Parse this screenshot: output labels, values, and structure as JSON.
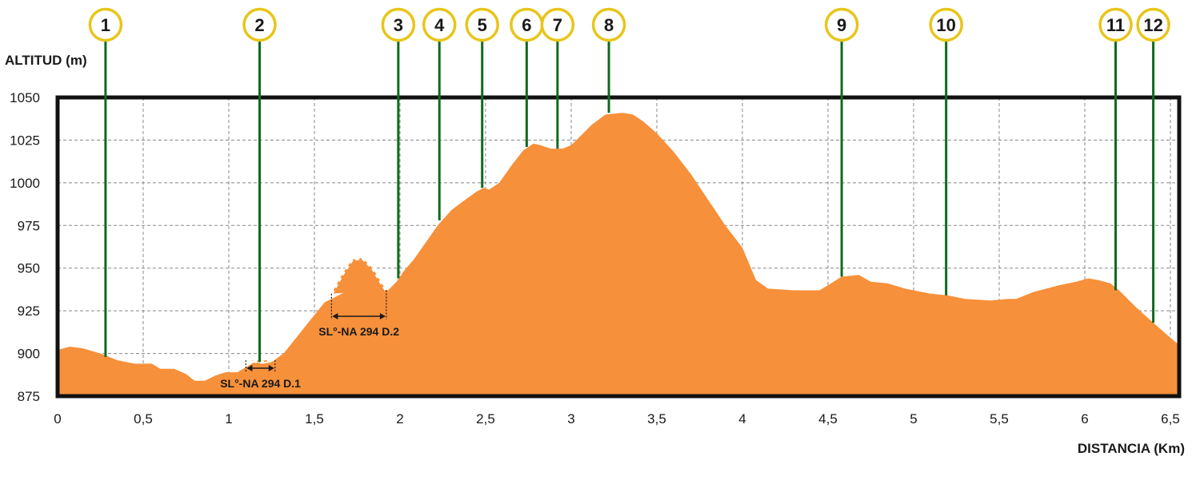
{
  "chart_data": {
    "type": "area",
    "title": "",
    "ylabel": "ALTITUD  (m)",
    "xlabel": "DISTANCIA (Km)",
    "xlim": [
      0,
      6.55
    ],
    "ylim": [
      875,
      1050
    ],
    "x_ticks": [
      {
        "value": 0,
        "label": "0"
      },
      {
        "value": 0.5,
        "label": "0,5"
      },
      {
        "value": 1,
        "label": "1"
      },
      {
        "value": 1.5,
        "label": "1,5"
      },
      {
        "value": 2,
        "label": "2"
      },
      {
        "value": 2.5,
        "label": "2,5"
      },
      {
        "value": 3,
        "label": "3"
      },
      {
        "value": 3.5,
        "label": "3,5"
      },
      {
        "value": 4,
        "label": "4"
      },
      {
        "value": 4.5,
        "label": "4,5"
      },
      {
        "value": 5,
        "label": "5"
      },
      {
        "value": 5.5,
        "label": "5,5"
      },
      {
        "value": 6,
        "label": "6"
      },
      {
        "value": 6.5,
        "label": "6,5"
      }
    ],
    "y_ticks": [
      {
        "value": 875,
        "label": "875"
      },
      {
        "value": 900,
        "label": "900"
      },
      {
        "value": 925,
        "label": "925"
      },
      {
        "value": 950,
        "label": "950"
      },
      {
        "value": 975,
        "label": "975"
      },
      {
        "value": 1000,
        "label": "1000"
      },
      {
        "value": 1025,
        "label": "1025"
      },
      {
        "value": 1050,
        "label": "1050"
      }
    ],
    "grid": true,
    "fill_color": "#F6903A",
    "grid_color": "#888888",
    "frame_color": "#111111",
    "profile": [
      [
        0.0,
        902
      ],
      [
        0.07,
        904
      ],
      [
        0.15,
        903
      ],
      [
        0.25,
        900
      ],
      [
        0.3,
        898
      ],
      [
        0.35,
        896
      ],
      [
        0.45,
        894
      ],
      [
        0.55,
        894
      ],
      [
        0.6,
        891
      ],
      [
        0.68,
        891
      ],
      [
        0.75,
        888
      ],
      [
        0.8,
        884
      ],
      [
        0.86,
        884
      ],
      [
        0.92,
        887
      ],
      [
        0.98,
        889
      ],
      [
        1.05,
        889
      ],
      [
        1.1,
        892
      ],
      [
        1.15,
        895
      ],
      [
        1.2,
        894
      ],
      [
        1.25,
        895
      ],
      [
        1.32,
        900
      ],
      [
        1.4,
        910
      ],
      [
        1.48,
        920
      ],
      [
        1.56,
        930
      ],
      [
        1.66,
        935
      ],
      [
        1.75,
        940
      ],
      [
        1.85,
        939
      ],
      [
        1.93,
        937
      ],
      [
        1.98,
        942
      ],
      [
        2.02,
        948
      ],
      [
        2.08,
        955
      ],
      [
        2.15,
        965
      ],
      [
        2.22,
        975
      ],
      [
        2.3,
        984
      ],
      [
        2.38,
        990
      ],
      [
        2.45,
        995
      ],
      [
        2.49,
        997
      ],
      [
        2.52,
        996
      ],
      [
        2.58,
        1000
      ],
      [
        2.65,
        1010
      ],
      [
        2.72,
        1019
      ],
      [
        2.78,
        1023
      ],
      [
        2.82,
        1022
      ],
      [
        2.88,
        1020
      ],
      [
        2.95,
        1020
      ],
      [
        3.0,
        1022
      ],
      [
        3.05,
        1027
      ],
      [
        3.12,
        1034
      ],
      [
        3.2,
        1040
      ],
      [
        3.3,
        1041
      ],
      [
        3.36,
        1040
      ],
      [
        3.42,
        1036
      ],
      [
        3.5,
        1029
      ],
      [
        3.6,
        1018
      ],
      [
        3.7,
        1005
      ],
      [
        3.8,
        990
      ],
      [
        3.9,
        975
      ],
      [
        4.0,
        962
      ],
      [
        4.05,
        950
      ],
      [
        4.08,
        943
      ],
      [
        4.15,
        938
      ],
      [
        4.3,
        937
      ],
      [
        4.45,
        937
      ],
      [
        4.5,
        940
      ],
      [
        4.58,
        945
      ],
      [
        4.68,
        946
      ],
      [
        4.75,
        942
      ],
      [
        4.85,
        941
      ],
      [
        4.95,
        938
      ],
      [
        5.0,
        937
      ],
      [
        5.05,
        936
      ],
      [
        5.1,
        935
      ],
      [
        5.2,
        934
      ],
      [
        5.3,
        932
      ],
      [
        5.45,
        931
      ],
      [
        5.55,
        932
      ],
      [
        5.6,
        932
      ],
      [
        5.7,
        936
      ],
      [
        5.85,
        940
      ],
      [
        5.95,
        942
      ],
      [
        6.02,
        944
      ],
      [
        6.08,
        943
      ],
      [
        6.15,
        941
      ],
      [
        6.2,
        937
      ],
      [
        6.3,
        927
      ],
      [
        6.4,
        918
      ],
      [
        6.48,
        911
      ],
      [
        6.55,
        905
      ]
    ],
    "detours": [
      {
        "label": "SL°-NA 294 D.1",
        "from": 1.1,
        "to": 1.27,
        "path": [
          [
            1.1,
            896
          ],
          [
            1.13,
            896
          ],
          [
            1.17,
            895
          ],
          [
            1.21,
            895
          ],
          [
            1.25,
            896
          ],
          [
            1.27,
            896
          ]
        ]
      },
      {
        "label": "SL°-NA 294 D.2",
        "from": 1.6,
        "to": 1.92,
        "path": [
          [
            1.6,
            935
          ],
          [
            1.66,
            946
          ],
          [
            1.72,
            955
          ],
          [
            1.78,
            956
          ],
          [
            1.84,
            950
          ],
          [
            1.9,
            940
          ],
          [
            1.92,
            937
          ]
        ]
      }
    ],
    "markers": [
      {
        "label": "1",
        "x": 0.28,
        "y": 898
      },
      {
        "label": "2",
        "x": 1.18,
        "y": 895
      },
      {
        "label": "3",
        "x": 1.99,
        "y": 944
      },
      {
        "label": "4",
        "x": 2.23,
        "y": 978
      },
      {
        "label": "5",
        "x": 2.48,
        "y": 997
      },
      {
        "label": "6",
        "x": 2.74,
        "y": 1021
      },
      {
        "label": "7",
        "x": 2.92,
        "y": 1020
      },
      {
        "label": "8",
        "x": 3.22,
        "y": 1041
      },
      {
        "label": "9",
        "x": 4.58,
        "y": 945
      },
      {
        "label": "10",
        "x": 5.19,
        "y": 934
      },
      {
        "label": "11",
        "x": 6.18,
        "y": 937
      },
      {
        "label": "12",
        "x": 6.4,
        "y": 918
      }
    ],
    "marker_colors": {
      "ring": "#E8C51A",
      "stem": "#0F6A1E",
      "fill": "#FFFFFF"
    }
  }
}
